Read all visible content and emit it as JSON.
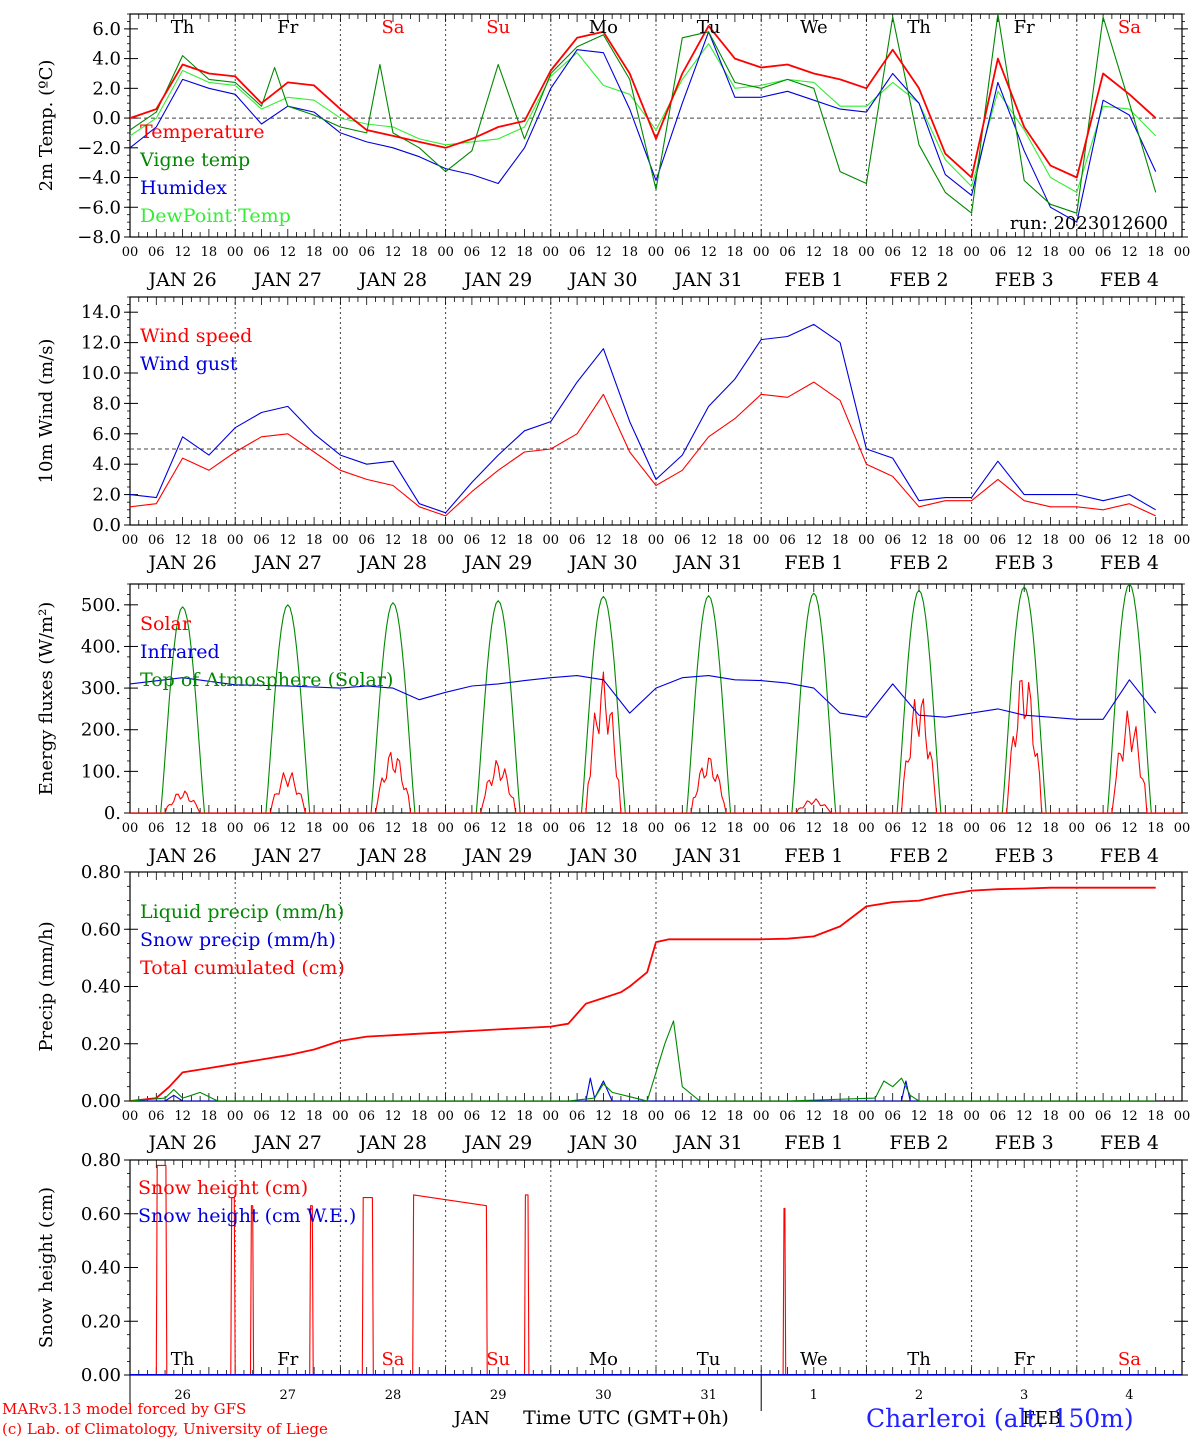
{
  "colors": {
    "red": "#ff0000",
    "green": "#008800",
    "blue": "#0000dd",
    "light_green": "#33ee33",
    "axis": "#000000"
  },
  "x_axis": {
    "hour_ticks": [
      "00",
      "06",
      "12",
      "18"
    ],
    "date_labels": [
      "JAN 26",
      "JAN 27",
      "JAN 28",
      "JAN 29",
      "JAN 30",
      "JAN 31",
      "FEB  1",
      "FEB  2",
      "FEB  3",
      "FEB  4"
    ],
    "day_numbers": [
      "26",
      "27",
      "28",
      "29",
      "30",
      "31",
      "1",
      "2",
      "3",
      "4"
    ],
    "month_labels": [
      "JAN",
      "FEB"
    ],
    "title": "Time UTC (GMT+0h)"
  },
  "weekdays": [
    "Th",
    "Fr",
    "Sa",
    "Su",
    "Mo",
    "Tu",
    "We",
    "Th",
    "Fr",
    "Sa"
  ],
  "weekday_colors": [
    "#000000",
    "#000000",
    "#ff0000",
    "#ff0000",
    "#000000",
    "#000000",
    "#000000",
    "#000000",
    "#000000",
    "#ff0000"
  ],
  "footer": {
    "model_line": "MARv3.13 model forced by GFS",
    "credit_line": "(c) Lab. of Climatology, University of Liege",
    "station": "Charleroi (alt. 150m)"
  },
  "chart_data": [
    {
      "type": "line",
      "ylabel": "2m Temp. (ºC)",
      "ylim": [
        -8,
        7
      ],
      "ytick_labels": [
        "6.0",
        "4.0",
        "2.0",
        "0.0",
        "−2.0",
        "−4.0",
        "−6.0",
        "−8.0"
      ],
      "ytick_values": [
        6,
        4,
        2,
        0,
        -2,
        -4,
        -6,
        -8
      ],
      "ref_line": 0,
      "annotation": "run: 2023012600",
      "x_unit": "hours since JAN 26 00 UTC",
      "series": [
        {
          "name": "Temperature",
          "color": "#ff0000",
          "x": [
            0,
            6,
            12,
            18,
            24,
            30,
            36,
            42,
            48,
            54,
            60,
            66,
            72,
            78,
            84,
            90,
            96,
            102,
            108,
            114,
            120,
            126,
            132,
            138,
            144,
            150,
            156,
            162,
            168,
            174,
            180,
            186,
            192,
            198,
            204,
            210,
            216,
            222,
            228,
            234
          ],
          "y": [
            0.0,
            0.6,
            3.6,
            3.0,
            2.8,
            1.0,
            2.4,
            2.2,
            0.6,
            -0.8,
            -1.2,
            -1.6,
            -2.0,
            -1.4,
            -0.6,
            -0.2,
            3.2,
            5.4,
            5.8,
            3.0,
            -1.4,
            3.0,
            6.2,
            4.0,
            3.4,
            3.6,
            3.0,
            2.6,
            2.0,
            4.6,
            2.0,
            -2.4,
            -4.0,
            4.0,
            -0.6,
            -3.2,
            -4.0,
            3.0,
            1.6,
            0.0
          ]
        },
        {
          "name": "Vigne temp",
          "color": "#008800",
          "x": [
            0,
            6,
            12,
            18,
            24,
            30,
            33,
            36,
            42,
            48,
            54,
            57,
            60,
            66,
            72,
            78,
            84,
            90,
            96,
            102,
            108,
            114,
            120,
            126,
            132,
            138,
            144,
            150,
            156,
            162,
            168,
            174,
            180,
            186,
            192,
            198,
            204,
            210,
            216,
            222,
            228,
            234
          ],
          "y": [
            -0.8,
            0.4,
            4.2,
            2.6,
            2.4,
            0.8,
            3.4,
            0.8,
            0.2,
            -0.6,
            -1.0,
            3.6,
            -1.0,
            -2.0,
            -3.6,
            -2.2,
            3.6,
            -1.4,
            3.0,
            4.8,
            5.6,
            2.6,
            -4.8,
            5.4,
            5.8,
            2.4,
            2.0,
            2.6,
            2.0,
            -3.6,
            -4.4,
            6.8,
            -1.8,
            -5.0,
            -6.4,
            7.0,
            -4.2,
            -5.8,
            -6.4,
            6.8,
            1.0,
            -5.0
          ]
        },
        {
          "name": "Humidex",
          "color": "#0000dd",
          "x": [
            0,
            6,
            12,
            18,
            24,
            30,
            36,
            42,
            48,
            54,
            60,
            66,
            72,
            78,
            84,
            90,
            96,
            102,
            108,
            114,
            120,
            126,
            132,
            138,
            144,
            150,
            156,
            162,
            168,
            174,
            180,
            186,
            192,
            198,
            204,
            210,
            216,
            222,
            228,
            234
          ],
          "y": [
            -2.0,
            -0.6,
            2.6,
            2.0,
            1.6,
            -0.4,
            0.8,
            0.4,
            -1.0,
            -1.6,
            -2.0,
            -2.6,
            -3.4,
            -3.8,
            -4.4,
            -2.0,
            2.0,
            4.6,
            4.4,
            0.6,
            -4.2,
            1.0,
            5.8,
            1.4,
            1.4,
            1.8,
            1.2,
            0.6,
            0.4,
            3.0,
            1.0,
            -3.8,
            -5.2,
            2.4,
            -2.2,
            -6.0,
            -7.0,
            1.2,
            0.2,
            -3.6
          ]
        },
        {
          "name": "DewPoint Temp",
          "color": "#33ee33",
          "x": [
            0,
            6,
            12,
            18,
            24,
            30,
            36,
            42,
            48,
            54,
            60,
            66,
            72,
            78,
            84,
            90,
            96,
            102,
            108,
            114,
            120,
            126,
            132,
            138,
            144,
            150,
            156,
            162,
            168,
            174,
            180,
            186,
            192,
            198,
            204,
            210,
            216,
            222,
            228,
            234
          ],
          "y": [
            -1.2,
            0.0,
            3.2,
            2.4,
            2.2,
            0.6,
            1.4,
            1.2,
            0.0,
            -0.4,
            -0.6,
            -1.4,
            -1.8,
            -1.6,
            -1.4,
            -0.6,
            2.8,
            4.4,
            2.2,
            1.6,
            -0.8,
            2.6,
            5.0,
            2.0,
            2.2,
            2.6,
            2.4,
            0.8,
            0.8,
            2.4,
            1.0,
            -2.8,
            -4.6,
            1.8,
            -0.8,
            -4.0,
            -5.0,
            0.8,
            0.6,
            -1.2
          ]
        }
      ]
    },
    {
      "type": "line",
      "ylabel": "10m Wind (m/s)",
      "ylim": [
        0,
        15
      ],
      "ytick_labels": [
        "14.0",
        "12.0",
        "10.0",
        "8.0",
        "6.0",
        "4.0",
        "2.0",
        "0.0"
      ],
      "ytick_values": [
        14,
        12,
        10,
        8,
        6,
        4,
        2,
        0
      ],
      "ref_line": 5,
      "x_unit": "hours since JAN 26 00 UTC",
      "series": [
        {
          "name": "Wind speed",
          "color": "#ff0000",
          "x": [
            0,
            6,
            12,
            18,
            24,
            30,
            36,
            42,
            48,
            54,
            60,
            66,
            72,
            78,
            84,
            90,
            96,
            102,
            108,
            114,
            120,
            126,
            132,
            138,
            144,
            150,
            156,
            162,
            168,
            174,
            180,
            186,
            192,
            198,
            204,
            210,
            216,
            222,
            228,
            234
          ],
          "y": [
            1.2,
            1.4,
            4.4,
            3.6,
            4.8,
            5.8,
            6.0,
            4.8,
            3.6,
            3.0,
            2.6,
            1.2,
            0.6,
            2.2,
            3.6,
            4.8,
            5.0,
            6.0,
            8.6,
            4.8,
            2.6,
            3.6,
            5.8,
            7.0,
            8.6,
            8.4,
            9.4,
            8.2,
            4.0,
            3.2,
            1.2,
            1.6,
            1.6,
            3.0,
            1.6,
            1.2,
            1.2,
            1.0,
            1.4,
            0.6
          ]
        },
        {
          "name": "Wind gust",
          "color": "#0000dd",
          "x": [
            0,
            6,
            12,
            18,
            24,
            30,
            36,
            42,
            48,
            54,
            60,
            66,
            72,
            78,
            84,
            90,
            96,
            102,
            108,
            114,
            120,
            126,
            132,
            138,
            144,
            150,
            156,
            162,
            168,
            174,
            180,
            186,
            192,
            198,
            204,
            210,
            216,
            222,
            228,
            234
          ],
          "y": [
            2.0,
            1.8,
            5.8,
            4.6,
            6.4,
            7.4,
            7.8,
            6.0,
            4.6,
            4.0,
            4.2,
            1.4,
            0.8,
            2.8,
            4.6,
            6.2,
            6.8,
            9.4,
            11.6,
            6.8,
            3.0,
            4.6,
            7.8,
            9.6,
            12.2,
            12.4,
            13.2,
            12.0,
            5.0,
            4.4,
            1.6,
            1.8,
            1.8,
            4.2,
            2.0,
            2.0,
            2.0,
            1.6,
            2.0,
            1.0
          ]
        }
      ]
    },
    {
      "type": "line",
      "ylabel": "Energy fluxes (W/m²)",
      "ylim": [
        0,
        550
      ],
      "ytick_labels": [
        "500.",
        "400.",
        "300.",
        "200.",
        "100.",
        "0."
      ],
      "ytick_values": [
        500,
        400,
        300,
        200,
        100,
        0
      ],
      "x_unit": "hours since JAN 26 00 UTC",
      "peaks_toa": [
        495,
        500,
        505,
        510,
        520,
        522,
        528,
        535,
        543,
        550
      ],
      "peaks_solar": [
        55,
        105,
        155,
        130,
        340,
        140,
        35,
        300,
        355,
        250
      ],
      "series": [
        {
          "name": "Solar",
          "color": "#ff0000"
        },
        {
          "name": "Infrared",
          "color": "#0000dd",
          "x": [
            0,
            12,
            24,
            36,
            48,
            54,
            60,
            66,
            72,
            78,
            84,
            90,
            96,
            102,
            108,
            114,
            120,
            126,
            132,
            138,
            144,
            150,
            156,
            162,
            168,
            174,
            180,
            186,
            192,
            198,
            204,
            210,
            216,
            222,
            228,
            234
          ],
          "y": [
            310,
            325,
            308,
            305,
            300,
            305,
            300,
            272,
            290,
            305,
            310,
            318,
            325,
            330,
            320,
            240,
            300,
            325,
            330,
            320,
            318,
            312,
            300,
            240,
            230,
            310,
            235,
            230,
            240,
            250,
            235,
            230,
            225,
            225,
            320,
            240
          ]
        },
        {
          "name": "Top of Atmosphere (Solar)",
          "color": "#008800"
        }
      ]
    },
    {
      "type": "line",
      "ylabel": "Precip (mm/h)",
      "ylim": [
        0,
        0.8
      ],
      "ytick_labels": [
        "0.80",
        "0.60",
        "0.40",
        "0.20",
        "0.00"
      ],
      "ytick_values": [
        0.8,
        0.6,
        0.4,
        0.2,
        0
      ],
      "x_unit": "hours since JAN 26 00 UTC",
      "series": [
        {
          "name": "Liquid precip (mm/h)",
          "color": "#008800",
          "x": [
            0,
            8,
            10,
            12,
            14,
            16,
            20,
            40,
            60,
            80,
            100,
            106,
            108,
            110,
            118,
            122,
            124,
            126,
            130,
            150,
            170,
            172,
            174,
            176,
            178,
            180,
            200,
            220,
            234
          ],
          "y": [
            0,
            0.01,
            0.04,
            0.01,
            0.02,
            0.03,
            0,
            0,
            0,
            0,
            0,
            0.01,
            0.06,
            0.03,
            0,
            0.2,
            0.28,
            0.05,
            0,
            0,
            0.01,
            0.07,
            0.05,
            0.08,
            0.02,
            0,
            0,
            0,
            0
          ]
        },
        {
          "name": "Snow precip (mm/h)",
          "color": "#0000dd",
          "x": [
            0,
            8,
            10,
            12,
            20,
            60,
            100,
            104,
            105,
            106,
            108,
            110,
            140,
            150,
            176,
            177,
            178,
            180,
            234
          ],
          "y": [
            0,
            0,
            0.02,
            0,
            0,
            0,
            0,
            0,
            0.08,
            0.01,
            0.07,
            0,
            0,
            0,
            0,
            0.07,
            0,
            0,
            0
          ]
        },
        {
          "name": "Total cumulated (cm)",
          "color": "#ff0000",
          "x": [
            0,
            6,
            9,
            12,
            18,
            24,
            30,
            36,
            42,
            48,
            54,
            60,
            66,
            72,
            78,
            84,
            90,
            96,
            100,
            104,
            108,
            112,
            114,
            118,
            120,
            123,
            126,
            132,
            138,
            144,
            150,
            156,
            162,
            168,
            174,
            180,
            186,
            192,
            198,
            204,
            210,
            216,
            222,
            228,
            234
          ],
          "y": [
            0,
            0.01,
            0.05,
            0.1,
            0.115,
            0.13,
            0.145,
            0.16,
            0.18,
            0.21,
            0.225,
            0.23,
            0.235,
            0.24,
            0.245,
            0.25,
            0.255,
            0.26,
            0.27,
            0.34,
            0.36,
            0.38,
            0.4,
            0.45,
            0.555,
            0.565,
            0.565,
            0.565,
            0.565,
            0.565,
            0.567,
            0.575,
            0.61,
            0.68,
            0.695,
            0.7,
            0.72,
            0.735,
            0.74,
            0.742,
            0.745,
            0.745,
            0.745,
            0.745,
            0.745
          ]
        }
      ]
    },
    {
      "type": "line",
      "ylabel": "Snow height (cm)",
      "ylim": [
        0,
        0.8
      ],
      "ytick_labels": [
        "0.80",
        "0.60",
        "0.40",
        "0.20",
        "0.00"
      ],
      "ytick_values": [
        0.8,
        0.6,
        0.4,
        0.2,
        0
      ],
      "x_unit": "hours since JAN 26 00 UTC",
      "spikes": [
        [
          6,
          8.4,
          0.78
        ],
        [
          23,
          24,
          0.66
        ],
        [
          27.5,
          28.2,
          0.63
        ],
        [
          41,
          41.8,
          0.63
        ],
        [
          53,
          55.5,
          0.66
        ],
        [
          64.5,
          81.5,
          0.67,
          0.63
        ],
        [
          90,
          91,
          0.67
        ],
        [
          149,
          149.6,
          0.62
        ]
      ],
      "series": [
        {
          "name": "Snow height (cm)",
          "color": "#ff0000"
        },
        {
          "name": "Snow height (cm W.E.)",
          "color": "#0000dd"
        }
      ]
    }
  ]
}
